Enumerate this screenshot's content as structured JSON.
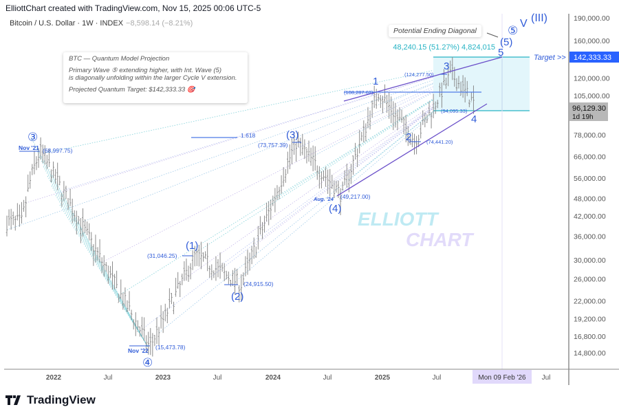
{
  "header": {
    "credit": "ElliottChart created with TradingView.com, Nov 15, 2025 00:06 UTC-5"
  },
  "symbol": {
    "name": "Bitcoin / U.S. Dollar · 1W · INDEX",
    "change": "−8,598.14 (−8.21%)"
  },
  "note": {
    "title": "BTC — Quantum Model Projection",
    "line1": "Primary Wave ⑤ extending higher, with Int. Wave (5)",
    "line2": "is diagonally unfolding within the larger Cycle V extension.",
    "target": "Projected Quantum Target: $142,333.33 🎯"
  },
  "callout": "Potential Ending Diagonal",
  "measure": "48,240.15 (51.27%) 4,824,015",
  "target_label": "Target >>",
  "fib_label": "1.618",
  "watermark": {
    "line1": "ELLIOTT",
    "line2": "CHART"
  },
  "waves": {
    "p3": "③",
    "p4": "④",
    "p5": "⑤",
    "cycleV": "V",
    "iii": "(III)",
    "i1": "(1)",
    "i2": "(2)",
    "i3": "(3)",
    "i4": "(4)",
    "i5": "(5)",
    "m1": "1",
    "m2": "2",
    "m3": "3",
    "m4": "4",
    "m5": "5",
    "nov21": "Nov '21",
    "nov22": "Nov '22",
    "aug24": "Aug. '24",
    "v68997": "(68,997.75)",
    "v15473": "(15,473.78)",
    "v31046": "(31,046.25)",
    "v24915": "(24,915.50)",
    "v73757": "(73,757.39)",
    "v49217": "(49,217.00)",
    "v108287": "(108,287.62)",
    "v74441": "(74,441.20)",
    "v124277": "(124,277.50)",
    "v94095": "(94,095.33)"
  },
  "price_axis": {
    "ticks": [
      "190,000.00",
      "160,000.00",
      "120,000.00",
      "105,000.00",
      "78,000.00",
      "66,000.00",
      "56,000.00",
      "48,000.00",
      "42,000.00",
      "36,000.00",
      "30,000.00",
      "26,000.00",
      "22,000.00",
      "19,200.00",
      "16,800.00",
      "14,800.00"
    ],
    "target_badge": "142,333.33",
    "last_price": "96,129.30",
    "countdown": "1d 19h"
  },
  "time_axis": {
    "ticks": [
      "2022",
      "Jul",
      "2023",
      "Jul",
      "2024",
      "Jul",
      "2025",
      "Jul",
      "Jul"
    ],
    "cursor_label": "Mon 09 Feb '26"
  },
  "colors": {
    "wave": "#2f5bd8",
    "fib": "#26b3c4",
    "bars": "#8a8a8a",
    "target_badge": "#2962ff",
    "zone": "#e3f6fb",
    "cursor": "#e1d9fb"
  },
  "chart_data": {
    "type": "bar",
    "title": "Bitcoin / U.S. Dollar · 1W · INDEX",
    "yscale": "log",
    "ylim": [
      14000,
      200000
    ],
    "xlim": [
      "2021-09",
      "2026-10"
    ],
    "grid": false,
    "pivots": [
      {
        "label": "③",
        "date": "2021-11",
        "price": 68997.75
      },
      {
        "label": "④",
        "date": "2022-11",
        "price": 15473.78
      },
      {
        "label": "(1)",
        "date": "2023-04",
        "price": 31046.25
      },
      {
        "label": "(2)",
        "date": "2023-09",
        "price": 24915.5
      },
      {
        "label": "(3)",
        "date": "2024-03",
        "price": 73757.39
      },
      {
        "label": "(4)",
        "date": "2024-08",
        "price": 49217.0
      },
      {
        "label": "1",
        "date": "2024-12",
        "price": 108287.62
      },
      {
        "label": "2",
        "date": "2025-04",
        "price": 74441.2
      },
      {
        "label": "3",
        "date": "2025-08",
        "price": 124277.5
      },
      {
        "label": "4",
        "date": "2025-11",
        "price": 94095.33
      },
      {
        "label": "5",
        "date": "2026-02",
        "price": 142333.33
      }
    ],
    "last_price": 96129.3,
    "target": 142333.33
  }
}
